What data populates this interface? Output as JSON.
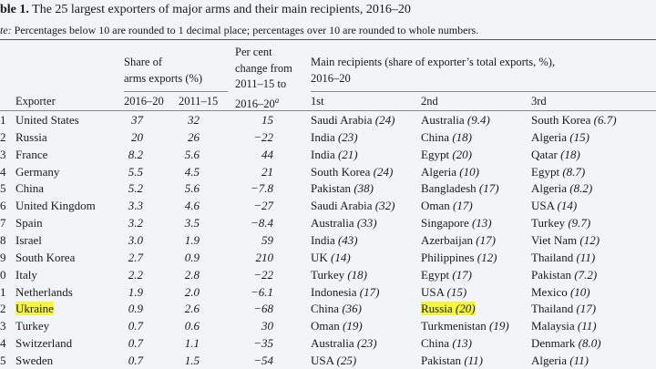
{
  "title_label": "ble 1.",
  "title": "The 25 largest exporters of major arms and their main recipients, 2016–20",
  "note_label": "te:",
  "note": "Percentages below 10 are rounded to 1 decimal place; percentages over 10 are rounded to whole numbers.",
  "headers": {
    "share": [
      "Share of",
      "arms exports (%)"
    ],
    "change": [
      "Per cent",
      "change from",
      "2011–15 to",
      "2016–20"
    ],
    "change_note": "a",
    "recipients": [
      "Main recipients (share of exporter’s total exports, %),",
      "2016–20"
    ],
    "exporter": "Exporter",
    "share_2016_20": "2016–20",
    "share_2011_15": "2011–15",
    "first": "1st",
    "second": "2nd",
    "third": "3rd"
  },
  "rows": [
    {
      "rank": "1",
      "exporter": "United States",
      "share_2016_20": "37",
      "share_2011_15": "32",
      "change": "15",
      "recipients": [
        [
          "Saudi Arabia",
          "(24)"
        ],
        [
          "Australia",
          "(9.4)"
        ],
        [
          "South Korea",
          "(6.7)"
        ]
      ]
    },
    {
      "rank": "2",
      "exporter": "Russia",
      "share_2016_20": "20",
      "share_2011_15": "26",
      "change": "−22",
      "recipients": [
        [
          "India",
          "(23)"
        ],
        [
          "China",
          "(18)"
        ],
        [
          "Algeria",
          "(15)"
        ]
      ]
    },
    {
      "rank": "3",
      "exporter": "France",
      "share_2016_20": "8.2",
      "share_2011_15": "5.6",
      "change": "44",
      "recipients": [
        [
          "India",
          "(21)"
        ],
        [
          "Egypt",
          "(20)"
        ],
        [
          "Qatar",
          "(18)"
        ]
      ]
    },
    {
      "rank": "4",
      "exporter": "Germany",
      "share_2016_20": "5.5",
      "share_2011_15": "4.5",
      "change": "21",
      "recipients": [
        [
          "South Korea",
          "(24)"
        ],
        [
          "Algeria",
          "(10)"
        ],
        [
          "Egypt",
          "(8.7)"
        ]
      ]
    },
    {
      "rank": "5",
      "exporter": "China",
      "share_2016_20": "5.2",
      "share_2011_15": "5.6",
      "change": "−7.8",
      "recipients": [
        [
          "Pakistan",
          "(38)"
        ],
        [
          "Bangladesh",
          "(17)"
        ],
        [
          "Algeria",
          "(8.2)"
        ]
      ]
    },
    {
      "rank": "6",
      "exporter": "United Kingdom",
      "share_2016_20": "3.3",
      "share_2011_15": "4.6",
      "change": "−27",
      "recipients": [
        [
          "Saudi Arabia",
          "(32)"
        ],
        [
          "Oman",
          "(17)"
        ],
        [
          "USA",
          "(14)"
        ]
      ]
    },
    {
      "rank": "7",
      "exporter": "Spain",
      "share_2016_20": "3.2",
      "share_2011_15": "3.5",
      "change": "−8.4",
      "recipients": [
        [
          "Australia",
          "(33)"
        ],
        [
          "Singapore",
          "(13)"
        ],
        [
          "Turkey",
          "(9.7)"
        ]
      ]
    },
    {
      "rank": "8",
      "exporter": "Israel",
      "share_2016_20": "3.0",
      "share_2011_15": "1.9",
      "change": "59",
      "recipients": [
        [
          "India",
          "(43)"
        ],
        [
          "Azerbaijan",
          "(17)"
        ],
        [
          "Viet Nam",
          "(12)"
        ]
      ]
    },
    {
      "rank": "9",
      "exporter": "South Korea",
      "share_2016_20": "2.7",
      "share_2011_15": "0.9",
      "change": "210",
      "recipients": [
        [
          "UK",
          "(14)"
        ],
        [
          "Philippines",
          "(12)"
        ],
        [
          "Thailand",
          "(11)"
        ]
      ]
    },
    {
      "rank": "0",
      "exporter": "Italy",
      "share_2016_20": "2.2",
      "share_2011_15": "2.8",
      "change": "−22",
      "recipients": [
        [
          "Turkey",
          "(18)"
        ],
        [
          "Egypt",
          "(17)"
        ],
        [
          "Pakistan",
          "(7.2)"
        ]
      ]
    },
    {
      "rank": "1",
      "exporter": "Netherlands",
      "share_2016_20": "1.9",
      "share_2011_15": "2.0",
      "change": "−6.1",
      "recipients": [
        [
          "Indonesia",
          "(17)"
        ],
        [
          "USA",
          "(15)"
        ],
        [
          "Mexico",
          "(10)"
        ]
      ]
    },
    {
      "rank": "2",
      "exporter": "Ukraine",
      "share_2016_20": "0.9",
      "share_2011_15": "2.6",
      "change": "−68",
      "recipients": [
        [
          "China",
          "(36)"
        ],
        [
          "Russia",
          "(20)"
        ],
        [
          "Thailand",
          "(17)"
        ]
      ]
    },
    {
      "rank": "3",
      "exporter": "Turkey",
      "share_2016_20": "0.7",
      "share_2011_15": "0.6",
      "change": "30",
      "recipients": [
        [
          "Oman",
          "(19)"
        ],
        [
          "Turkmenistan",
          "(19)"
        ],
        [
          "Malaysia",
          "(11)"
        ]
      ]
    },
    {
      "rank": "4",
      "exporter": "Switzerland",
      "share_2016_20": "0.7",
      "share_2011_15": "1.1",
      "change": "−35",
      "recipients": [
        [
          "Australia",
          "(23)"
        ],
        [
          "China",
          "(13)"
        ],
        [
          "Denmark",
          "(8.0)"
        ]
      ]
    },
    {
      "rank": "5",
      "exporter": "Sweden",
      "share_2016_20": "0.7",
      "share_2011_15": "1.5",
      "change": "−54",
      "recipients": [
        [
          "USA",
          "(25)"
        ],
        [
          "Pakistan",
          "(11)"
        ],
        [
          "Algeria",
          "(11)"
        ]
      ]
    }
  ],
  "highlight": [
    "rows.11.exporter",
    "rows.11.recipients.1"
  ]
}
